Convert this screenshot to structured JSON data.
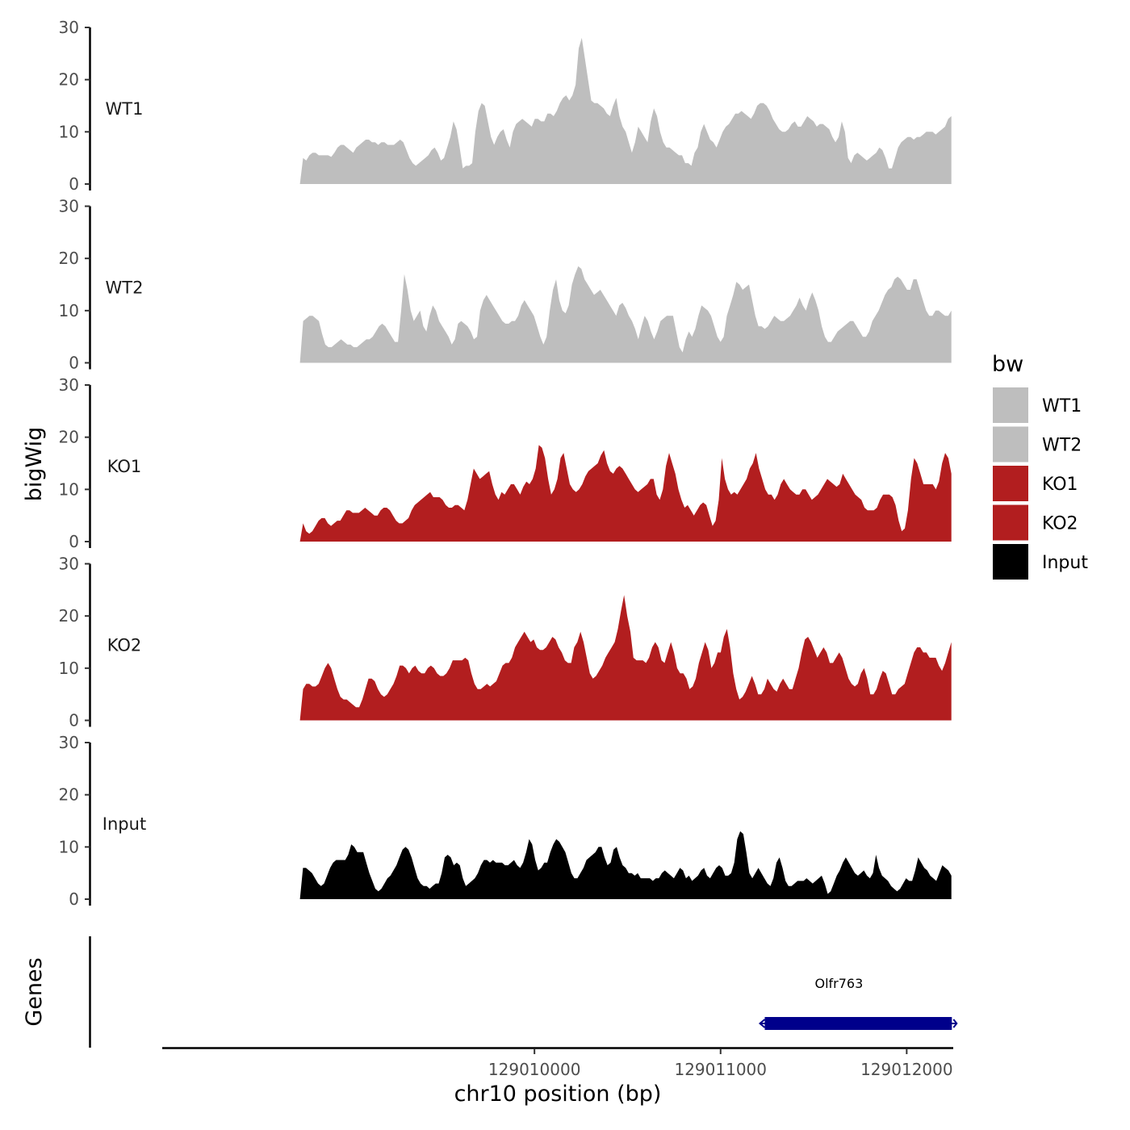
{
  "chart_data": {
    "type": "area",
    "ylabel": "bigWig",
    "xlabel": "chr10 position (bp)",
    "ylim": [
      0,
      30
    ],
    "y_ticks": [
      "0",
      "10",
      "20",
      "30"
    ],
    "xlim": [
      129008000,
      129012250
    ],
    "x_ticks": [
      {
        "value": 129010000,
        "label": "129010000"
      },
      {
        "value": 129011000,
        "label": "129011000"
      },
      {
        "value": 129012000,
        "label": "129012000"
      }
    ],
    "data_range": [
      129008740,
      129012240
    ],
    "legend": {
      "title": "bw",
      "position": "right",
      "entries": [
        {
          "label": "WT1",
          "color": "#bebebe"
        },
        {
          "label": "WT2",
          "color": "#bebebe"
        },
        {
          "label": "KO1",
          "color": "#b21e1f"
        },
        {
          "label": "KO2",
          "color": "#b21e1f"
        },
        {
          "label": "Input",
          "color": "#000000"
        }
      ]
    },
    "series": [
      {
        "name": "WT1",
        "color": "#bebebe",
        "values": [
          0,
          5,
          4.5,
          5.5,
          6,
          6,
          5.5,
          5.5,
          5.5,
          5.5,
          5.2,
          6,
          7,
          7.5,
          7.5,
          7,
          6.5,
          6,
          7,
          7.5,
          8,
          8.5,
          8.5,
          8,
          8,
          7.5,
          8,
          8,
          7.5,
          7.5,
          7.5,
          8,
          8.5,
          8,
          6.5,
          5,
          4,
          3.5,
          4,
          4.5,
          5,
          5.5,
          6.5,
          7,
          6,
          4.5,
          5,
          7,
          9,
          12,
          10.5,
          7,
          3,
          3.5,
          3.5,
          4,
          10,
          14,
          15.5,
          15,
          12,
          9,
          7.5,
          9,
          10,
          10.5,
          8.5,
          7,
          10,
          11.5,
          12,
          12.5,
          12,
          11.5,
          11,
          12.5,
          12.5,
          12,
          12,
          13.5,
          13.5,
          13,
          14,
          15.5,
          16.5,
          17,
          16,
          17,
          19,
          26,
          28,
          24,
          20,
          16,
          15.5,
          15.5,
          15,
          14.5,
          13.5,
          13,
          15,
          16.5,
          13,
          11,
          10,
          8,
          6,
          8,
          11,
          10,
          9,
          8,
          12,
          14.5,
          13,
          10,
          8,
          7,
          7,
          6.5,
          6,
          5.5,
          5.5,
          4,
          4,
          3.5,
          6,
          7,
          10,
          11.5,
          10,
          8.5,
          8,
          7,
          8.5,
          10,
          11,
          11.5,
          12.5,
          13.5,
          13.5,
          14,
          13.5,
          13,
          12.5,
          13.5,
          15,
          15.5,
          15.5,
          15,
          14,
          12.5,
          11.5,
          10.5,
          10,
          10,
          10.5,
          11.5,
          12,
          11,
          11,
          12,
          13,
          12.5,
          12,
          11,
          11.5,
          11.5,
          11,
          10.5,
          9,
          8,
          9,
          12,
          10,
          5,
          4,
          5.5,
          6,
          5.5,
          5,
          4.5,
          5,
          5.5,
          6,
          7,
          6.5,
          5,
          3,
          3,
          5,
          7,
          8,
          8.5,
          9,
          9,
          8.5,
          9,
          9,
          9.5,
          10,
          10,
          10,
          9.5,
          10,
          10.5,
          11,
          12.5,
          13
        ]
      },
      {
        "name": "WT2",
        "color": "#bebebe",
        "values": [
          0,
          8,
          8.5,
          9,
          9,
          8.5,
          8,
          5.5,
          3.5,
          3,
          3,
          3.5,
          4,
          4.5,
          4,
          3.5,
          3.5,
          3,
          3,
          3.5,
          4,
          4.5,
          4.5,
          5,
          6,
          7,
          7.5,
          7,
          6,
          5,
          4,
          4,
          10,
          17,
          14,
          10,
          8,
          9,
          10,
          7,
          6,
          9,
          11,
          10,
          8,
          7,
          6,
          5,
          3.5,
          4.5,
          7.5,
          8,
          7.5,
          7,
          6,
          4.5,
          5,
          10,
          12,
          13,
          12,
          11,
          10,
          9,
          8,
          7.5,
          7.5,
          8,
          8,
          9,
          11,
          12,
          11,
          10,
          9,
          7,
          5,
          3.5,
          5,
          10,
          14,
          16,
          12,
          10,
          9.5,
          11,
          15,
          17,
          18.5,
          18,
          16,
          15,
          14,
          13,
          13.5,
          14,
          13,
          12,
          11,
          10,
          9,
          11,
          11.5,
          10.5,
          9,
          8,
          6.5,
          4.5,
          7,
          9,
          8,
          6,
          4.5,
          6,
          8,
          8.5,
          9,
          9,
          9,
          6,
          3,
          2,
          4.5,
          6,
          5,
          6.5,
          9,
          11,
          10.5,
          10,
          9,
          7,
          5,
          4,
          5,
          9,
          11,
          13,
          15.5,
          15,
          14,
          14.5,
          15,
          12,
          9,
          7,
          7,
          6.5,
          7,
          8,
          9,
          8.5,
          8,
          8,
          8.5,
          9,
          10,
          11,
          12.5,
          11,
          10,
          12,
          13.5,
          12,
          10,
          7,
          5,
          4,
          4,
          5,
          6,
          6.5,
          7,
          7.5,
          8,
          8,
          7,
          6,
          5,
          5,
          6,
          8,
          9,
          10,
          11.5,
          13,
          14,
          14.5,
          16,
          16.5,
          16,
          15,
          14,
          14,
          16,
          16,
          14,
          12,
          10,
          9,
          9,
          10,
          10,
          9.5,
          9,
          9,
          10
        ]
      },
      {
        "name": "KO1",
        "color": "#b21e1f",
        "values": [
          0,
          3.5,
          2,
          1.5,
          2,
          3,
          4,
          4.5,
          4.5,
          3.5,
          3,
          3.5,
          4,
          4,
          5,
          6,
          6,
          5.5,
          5.5,
          5.5,
          6,
          6.5,
          6,
          5.5,
          5,
          5,
          6,
          6.5,
          6.5,
          6,
          5,
          4,
          3.5,
          3.5,
          4,
          4.5,
          6,
          7,
          7.5,
          8,
          8.5,
          9,
          9.5,
          8.5,
          8.5,
          8.5,
          8,
          7,
          6.5,
          6.5,
          7,
          7,
          6.5,
          6,
          8,
          11,
          14,
          13,
          12,
          12.5,
          13,
          13.5,
          11,
          9,
          8,
          9.5,
          9,
          10,
          11,
          11,
          10,
          9,
          10.5,
          11.5,
          11,
          12,
          14,
          18.5,
          18,
          16,
          12,
          9,
          10,
          12,
          16,
          17,
          14,
          11,
          10,
          9.5,
          10,
          11,
          12.5,
          13.5,
          14,
          14.5,
          15,
          16.5,
          17.5,
          15,
          13.5,
          13,
          14,
          14.5,
          14,
          13,
          12,
          11,
          10,
          9.5,
          10,
          10.5,
          11,
          12,
          12,
          9,
          8,
          10,
          14.5,
          17,
          15,
          13,
          10,
          8,
          6.5,
          7,
          6,
          5,
          6,
          7,
          7.5,
          7,
          5,
          3,
          4,
          8,
          16,
          12,
          10,
          9,
          9.5,
          9,
          10,
          11,
          12,
          14,
          15,
          17,
          14,
          12,
          10,
          9,
          9,
          8,
          9,
          11,
          12,
          11,
          10,
          9.5,
          9,
          9,
          10,
          10,
          9,
          8,
          8.5,
          9,
          10,
          11,
          12,
          11.5,
          11,
          10.5,
          11,
          13,
          12,
          11,
          10,
          9,
          8.5,
          8,
          6.5,
          6,
          6,
          6,
          6.5,
          8,
          9,
          9,
          9,
          8.5,
          7,
          4,
          2,
          2.5,
          6,
          12,
          16,
          15,
          13,
          11,
          11,
          11,
          11,
          10,
          11.5,
          15,
          17,
          16,
          13
        ]
      },
      {
        "name": "KO2",
        "color": "#b21e1f",
        "values": [
          0,
          6,
          7,
          7,
          6.5,
          6.5,
          7,
          8.5,
          10,
          11,
          10,
          8,
          6,
          4.5,
          4,
          4,
          3.5,
          3,
          2.5,
          2.5,
          4,
          6,
          8,
          8,
          7.5,
          6,
          5,
          4.5,
          5,
          6,
          7,
          8.5,
          10.5,
          10.5,
          10,
          9,
          10,
          10.5,
          9.5,
          9,
          9,
          10,
          10.5,
          10,
          9,
          8.5,
          8.5,
          9,
          10,
          11.5,
          11.5,
          11.5,
          11.5,
          12,
          11.5,
          9,
          7,
          6,
          6,
          6.5,
          7,
          6.5,
          7,
          7.5,
          9,
          10.5,
          11,
          11,
          12,
          14,
          15,
          16,
          17,
          16,
          15,
          15.5,
          14,
          13.5,
          13.5,
          14,
          15,
          16,
          15.5,
          14,
          13,
          11.5,
          11,
          11,
          14,
          15,
          17,
          15,
          12,
          9,
          8,
          8.5,
          9.5,
          10.5,
          12,
          13,
          14,
          15,
          17.5,
          21,
          24,
          20,
          17,
          12,
          11.5,
          11.5,
          11.5,
          11,
          12,
          14,
          15,
          14,
          11.5,
          11,
          13,
          15,
          13,
          10,
          9,
          9,
          8,
          6,
          6.5,
          8,
          11,
          13,
          15,
          13.5,
          10,
          11,
          13,
          13,
          16,
          17.5,
          14,
          9,
          6,
          4,
          4.5,
          5.5,
          7,
          8.5,
          7,
          5,
          5,
          6,
          8,
          7,
          6,
          5.5,
          7,
          8,
          7,
          6,
          6,
          8,
          10,
          13,
          15.5,
          16,
          15,
          13.5,
          12,
          13,
          14,
          13,
          11,
          11,
          12,
          13,
          12,
          10,
          8,
          7,
          6.5,
          7,
          9,
          10,
          8,
          5,
          5,
          6,
          8,
          9.5,
          9,
          7,
          5,
          5,
          6,
          6.5,
          7,
          9,
          11,
          13,
          14,
          14,
          13,
          13,
          12,
          12,
          12,
          10.5,
          9.5,
          11,
          13,
          15
        ]
      },
      {
        "name": "Input",
        "color": "#000000",
        "values": [
          0,
          6,
          6,
          5.5,
          5,
          4,
          3,
          2.5,
          3,
          4.5,
          6,
          7,
          7.5,
          7.5,
          7.5,
          7.5,
          8.5,
          10.5,
          10,
          9,
          9,
          9,
          7,
          5,
          3.5,
          2,
          1.5,
          2,
          3,
          4,
          4.5,
          5.5,
          6.5,
          8,
          9.5,
          10,
          9.5,
          8,
          6,
          4,
          3,
          2.5,
          2.5,
          2,
          2.5,
          3,
          3,
          5,
          8,
          8.5,
          8,
          6.5,
          7,
          6.5,
          4,
          2.5,
          3,
          3.5,
          4,
          5,
          6.5,
          7.5,
          7.5,
          7,
          7.5,
          7,
          7,
          7,
          6.5,
          6.5,
          7,
          7.5,
          6.5,
          6,
          7,
          9,
          11.5,
          10.5,
          7.5,
          5.5,
          6,
          7,
          7,
          9,
          10.5,
          11.5,
          11,
          10,
          9,
          7,
          5,
          4,
          4,
          5,
          6,
          7.5,
          8,
          8.5,
          9,
          10,
          10,
          8,
          6.5,
          7,
          9.5,
          10,
          8,
          6.5,
          6,
          5,
          5,
          4.5,
          5,
          4,
          4,
          4,
          4,
          3.5,
          4,
          4,
          5,
          5.5,
          5,
          4.5,
          4,
          5,
          6,
          5.5,
          4,
          4.5,
          3.5,
          4,
          4.5,
          5.5,
          6,
          4.5,
          4,
          5,
          6,
          6.5,
          6,
          4.5,
          4.5,
          5,
          7,
          11.5,
          13,
          12.5,
          9,
          5,
          4,
          5,
          6,
          5,
          4,
          3,
          2.5,
          4,
          7,
          8,
          6,
          3.5,
          2.5,
          2.5,
          3,
          3.5,
          3.5,
          3.5,
          4,
          3.5,
          3,
          3.5,
          4,
          4.5,
          3,
          1,
          1.5,
          3,
          4.5,
          5.5,
          7,
          8,
          7,
          6,
          5,
          4.5,
          5,
          5.5,
          4.5,
          4,
          5,
          8.5,
          6,
          4.5,
          4,
          3.5,
          2.5,
          2,
          1.5,
          2,
          3,
          4,
          3.5,
          3.5,
          5.5,
          8,
          7,
          6,
          5.5,
          4.5,
          4,
          3.5,
          5,
          6.5,
          6,
          5.5,
          4.5
        ]
      }
    ],
    "genes": [
      {
        "name": "Olfr763",
        "start": 129011220,
        "end": 129012260,
        "strand": "-",
        "color": "#00008b"
      }
    ],
    "gene_track_label": "Genes"
  }
}
